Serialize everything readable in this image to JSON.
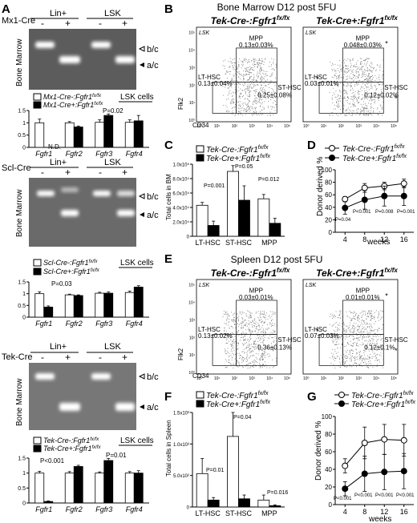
{
  "panels": {
    "A": {
      "letter": "A",
      "gels": [
        {
          "cre": "Mx1-Cre",
          "group_left": "Lin+",
          "group_right": "LSK",
          "lane_signs": [
            "-",
            "+",
            "-",
            "+"
          ],
          "tissue": "Bone Marrow",
          "band_upper": "b/c",
          "band_lower": "a/c",
          "legend": [
            {
              "gene": "Mx1-Cre-",
              "genotype": "Fgfr1",
              "sup": "fx/fx",
              "fill": "#ffffff"
            },
            {
              "gene": "Mx1-Cre+",
              "genotype": "Fgfr1",
              "sup": "fx/fx",
              "fill": "#000000"
            }
          ],
          "cells_label": "LSK cells",
          "ylabel": "normalized expression levels",
          "annotations": [
            "N.D.",
            "P=0.02"
          ]
        },
        {
          "cre": "Scl-Cre",
          "group_left": "Lin+",
          "group_right": "LSK",
          "lane_signs": [
            "-",
            "+",
            "-",
            "+"
          ],
          "tissue": "Bone Marrow",
          "band_upper": "b/c",
          "band_lower": "a/c",
          "legend": [
            {
              "gene": "Scl-Cre-",
              "genotype": "Fgfr1",
              "sup": "fx/fx",
              "fill": "#ffffff"
            },
            {
              "gene": "Scl-Cre+",
              "genotype": "Fgfr1",
              "sup": "fx/fx",
              "fill": "#000000"
            }
          ],
          "cells_label": "LSK cells",
          "ylabel": "normalized expression levels",
          "annotations": [
            "P=0.03"
          ]
        },
        {
          "cre": "Tek-Cre",
          "group_left": "Lin+",
          "group_right": "LSK",
          "lane_signs": [
            "-",
            "+",
            "-",
            "+"
          ],
          "tissue": "Bone Marrow",
          "band_upper": "b/c",
          "band_lower": "a/c",
          "legend": [
            {
              "gene": "Tek-Cre-",
              "genotype": "Fgfr1",
              "sup": "fx/fx",
              "fill": "#ffffff"
            },
            {
              "gene": "Tek-Cre+",
              "genotype": "Fgfr1",
              "sup": "fx/fx",
              "fill": "#000000"
            }
          ],
          "cells_label": "LSK cells",
          "ylabel": "normalized expression levels",
          "annotations": [
            "P<0.001",
            "P=0.01"
          ]
        }
      ]
    },
    "B": {
      "letter": "B",
      "title": "Bone Marrow D12 post 5FU",
      "plots": [
        {
          "header": "Tek-Cre-:Fgfr1",
          "sup": "fx/fx",
          "gate": "LSK",
          "mpp_label": "MPP",
          "mpp_value": "0.13±0.03%",
          "lt_label": "LT-HSC",
          "lt_value": "0.13±0.04%",
          "st_label": "ST-HSC",
          "st_value": "0.25±0.08%",
          "stars": false
        },
        {
          "header": "Tek-Cre+:Fgfr1",
          "sup": "fx/fx",
          "gate": "LSK",
          "mpp_label": "MPP",
          "mpp_value": "0.048±0.03%",
          "lt_label": "LT-HSC",
          "lt_value": "0.03±0.01%",
          "st_label": "ST-HSC",
          "st_value": "0.12±0.02%",
          "stars": true
        }
      ],
      "xaxis": "CD34",
      "yaxis": "Flk2"
    },
    "C": {
      "letter": "C",
      "ylabel": "Total cells in BM",
      "annotations": [
        "P=0.001",
        "P=0.05",
        "P=0.012"
      ]
    },
    "D": {
      "letter": "D",
      "ylabel": "Donor derived %",
      "xlabel": "weeks",
      "annotations": [
        "P=0.04",
        "P<0.001",
        "P=0.008",
        "P=0.001"
      ]
    },
    "E": {
      "letter": "E",
      "title": "Spleen D12 post 5FU",
      "plots": [
        {
          "header": "Tek-Cre-:Fgfr1",
          "sup": "fx/fx",
          "gate": "LSK",
          "mpp_label": "MPP",
          "mpp_value": "0.03±0.01%",
          "lt_label": "LT-HSC",
          "lt_value": "0.13±0.02%",
          "st_label": "ST-HSC",
          "st_value": "0.36±0.13%",
          "stars": false
        },
        {
          "header": "Tek-Cre+:Fgfr1",
          "sup": "fx/fx",
          "gate": "LSK",
          "mpp_label": "MPP",
          "mpp_value": "0.01±0.01%",
          "lt_label": "LT-HSC",
          "lt_value": "0.07±0.03%",
          "st_label": "ST-HSC",
          "st_value": "0.12±0.1%",
          "stars": true
        }
      ],
      "xaxis": "CD34",
      "yaxis": "Flk2"
    },
    "F": {
      "letter": "F",
      "ylabel": "Total cells in Spleen",
      "annotations": [
        "P=0.01",
        "P=0.04",
        "P=0.016"
      ]
    },
    "G": {
      "letter": "G",
      "ylabel": "Donor derived %",
      "xlabel": "weeks",
      "annotations": [
        "P<0.001",
        "P<0.001",
        "P<0.001",
        "P<0.001"
      ]
    }
  },
  "legend_cd": [
    {
      "gene": "Tek-Cre-:Fgfr1",
      "sup": "fx/fx"
    },
    {
      "gene": "Tek-Cre+:Fgfr1",
      "sup": "fx/fx"
    }
  ],
  "chart_data": [
    {
      "type": "bar",
      "panel": "A1",
      "categories": [
        "Fgfr1",
        "Fgfr2",
        "Fgfr3",
        "Fgfr4"
      ],
      "ylim": [
        0,
        1.5
      ],
      "yticks": [
        "0",
        "0.5",
        "1",
        "1.5"
      ],
      "series": [
        {
          "name": "Mx1-Cre-:Fgfr1 fx/fx",
          "values": [
            1.0,
            1.0,
            1.02,
            1.02
          ],
          "errors": [
            0.15,
            0.05,
            0.1,
            0.1
          ]
        },
        {
          "name": "Mx1-Cre+:Fgfr1 fx/fx",
          "values": [
            0,
            0.83,
            1.3,
            1.08
          ],
          "errors": [
            0,
            0.04,
            0.06,
            0.22
          ]
        }
      ]
    },
    {
      "type": "bar",
      "panel": "A2",
      "categories": [
        "Fgfr1",
        "Fgfr2",
        "Fgfr3",
        "Fgfr4"
      ],
      "ylim": [
        0,
        1.5
      ],
      "yticks": [
        "0",
        "0.5",
        "1",
        "1.5"
      ],
      "series": [
        {
          "name": "Scl-Cre-:Fgfr1 fx/fx",
          "values": [
            1.0,
            0.95,
            1.02,
            1.05
          ],
          "errors": [
            0.08,
            0.03,
            0.04,
            0.06
          ]
        },
        {
          "name": "Scl-Cre+:Fgfr1 fx/fx",
          "values": [
            0.43,
            0.92,
            1.02,
            1.28
          ],
          "errors": [
            0.05,
            0.03,
            0.05,
            0.06
          ]
        }
      ]
    },
    {
      "type": "bar",
      "panel": "A3",
      "categories": [
        "Fgfr1",
        "Fgfr2",
        "Fgfr3",
        "Fgfr4"
      ],
      "ylim": [
        0,
        1.5
      ],
      "yticks": [
        "0",
        "0.5",
        "1",
        "1.5"
      ],
      "series": [
        {
          "name": "Tek-Cre-:Fgfr1 fx/fx",
          "values": [
            1.0,
            1.0,
            1.0,
            1.0
          ],
          "errors": [
            0.06,
            0.05,
            0.04,
            0.05
          ]
        },
        {
          "name": "Tek-Cre+:Fgfr1 fx/fx",
          "values": [
            0.05,
            1.22,
            1.42,
            1.0
          ],
          "errors": [
            0.02,
            0.04,
            0.07,
            0.08
          ]
        }
      ]
    },
    {
      "type": "bar",
      "panel": "C",
      "categories": [
        "LT-HSC",
        "ST-HSC",
        "MPP"
      ],
      "ylim": [
        0,
        100000
      ],
      "yticks": [
        "0",
        "2.0x10⁴",
        "4.0x10⁴",
        "6.0x10⁴",
        "8.0x10⁴",
        "1.0x10⁵"
      ],
      "series": [
        {
          "name": "Tek-Cre-:Fgfr1 fx/fx",
          "values": [
            43000,
            90000,
            52000
          ],
          "errors": [
            4000,
            8000,
            6000
          ]
        },
        {
          "name": "Tek-Cre+:Fgfr1 fx/fx",
          "values": [
            15000,
            50000,
            18000
          ],
          "errors": [
            6000,
            20000,
            7000
          ]
        }
      ]
    },
    {
      "type": "line",
      "panel": "D",
      "x": [
        4,
        8,
        12,
        16
      ],
      "ylim": [
        0,
        100
      ],
      "yticks": [
        "0",
        "20",
        "40",
        "60",
        "80",
        "100"
      ],
      "series": [
        {
          "name": "Tek-Cre-:Fgfr1 fx/fx",
          "values": [
            53,
            71,
            74,
            78
          ],
          "errors": [
            4,
            7,
            6,
            7
          ]
        },
        {
          "name": "Tek-Cre+:Fgfr1 fx/fx",
          "values": [
            39,
            52,
            58,
            58
          ],
          "errors": [
            10,
            15,
            16,
            15
          ]
        }
      ]
    },
    {
      "type": "bar",
      "panel": "F",
      "categories": [
        "LT-HSC",
        "ST-HSC",
        "MPP"
      ],
      "ylim": [
        0,
        1500
      ],
      "yticks": [
        "0",
        "5.0x10²",
        "1.0x10³",
        "1.5x10³"
      ],
      "series": [
        {
          "name": "Tek-Cre-:Fgfr1 fx/fx",
          "values": [
            530,
            1120,
            110
          ],
          "errors": [
            240,
            380,
            80
          ]
        },
        {
          "name": "Tek-Cre+:Fgfr1 fx/fx",
          "values": [
            110,
            130,
            20
          ],
          "errors": [
            40,
            60,
            15
          ]
        }
      ]
    },
    {
      "type": "line",
      "panel": "G",
      "x": [
        4,
        8,
        12,
        16
      ],
      "ylim": [
        0,
        100
      ],
      "yticks": [
        "0",
        "20",
        "40",
        "60",
        "80",
        "100"
      ],
      "series": [
        {
          "name": "Tek-Cre-:Fgfr1 fx/fx",
          "values": [
            44,
            70,
            74,
            73
          ],
          "errors": [
            8,
            18,
            17,
            18
          ]
        },
        {
          "name": "Tek-Cre+:Fgfr1 fx/fx",
          "values": [
            18,
            35,
            37,
            38
          ],
          "errors": [
            8,
            20,
            20,
            20
          ]
        }
      ]
    }
  ]
}
